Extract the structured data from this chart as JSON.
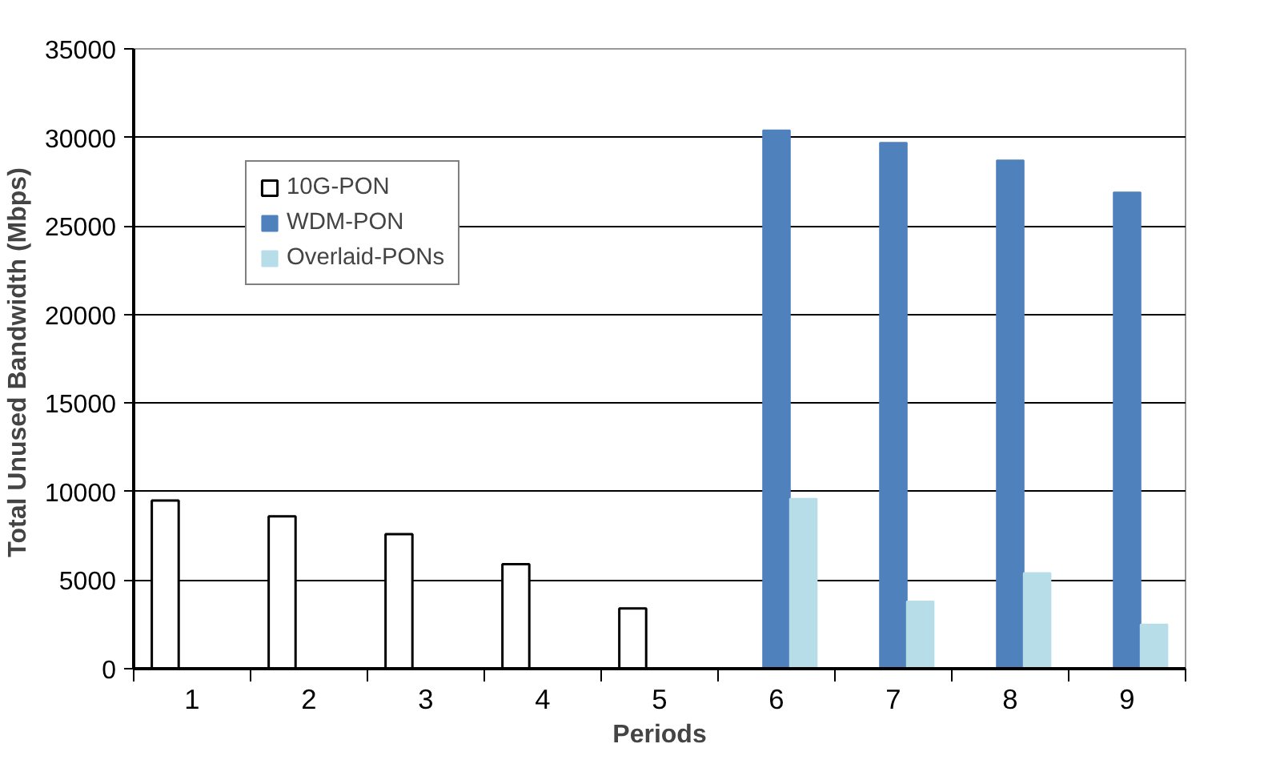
{
  "chart_data": {
    "type": "bar",
    "xlabel": "Periods",
    "ylabel": "Total Unused Bandwidth  (Mbps)",
    "categories": [
      "1",
      "2",
      "3",
      "4",
      "5",
      "6",
      "7",
      "8",
      "9"
    ],
    "series": [
      {
        "name": "10G-PON",
        "color": "#ffffff",
        "values": [
          9500,
          8600,
          7600,
          5900,
          3400,
          null,
          null,
          null,
          null
        ]
      },
      {
        "name": "WDM-PON",
        "color": "#4f81bd",
        "values": [
          null,
          null,
          null,
          null,
          null,
          30400,
          29700,
          28700,
          26900
        ]
      },
      {
        "name": "Overlaid-PONs",
        "color": "#b7dde8",
        "values": [
          null,
          null,
          null,
          null,
          null,
          9600,
          3800,
          5400,
          2500
        ]
      }
    ],
    "ylim": [
      0,
      35000
    ],
    "yticks": [
      0,
      5000,
      10000,
      15000,
      20000,
      25000,
      30000,
      35000
    ],
    "grid": "y",
    "legend": "top left"
  }
}
